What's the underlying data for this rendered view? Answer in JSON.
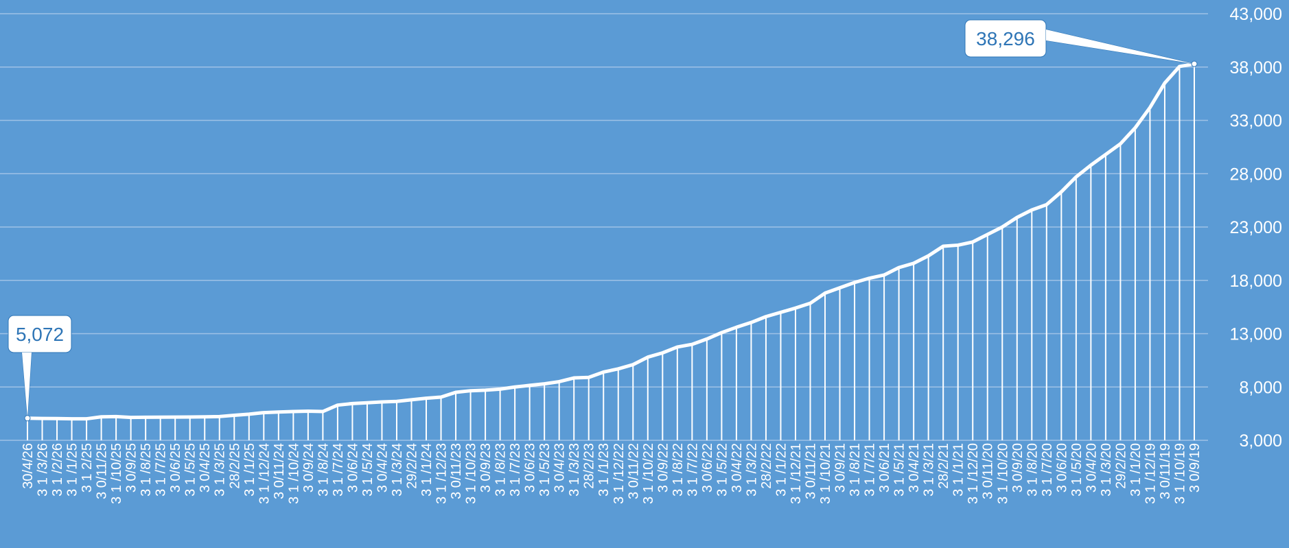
{
  "chart_data": {
    "type": "area",
    "ylim": [
      3000,
      43000
    ],
    "yticks": [
      3000,
      8000,
      13000,
      18000,
      23000,
      28000,
      33000,
      38000,
      43000
    ],
    "grid": true,
    "colors": {
      "background": "#5b9bd5",
      "line": "#ffffff",
      "gridline": "#9fc2e6",
      "callout_text": "#2e75b6"
    },
    "x": [
      "30/4/26",
      "3\n1\n/3/26",
      "3\n1\n/2/26",
      "3\n1\n/1/25",
      "3\n1\n2/25",
      "3\n0/11/25",
      "3\n1\n/10/25",
      "3\n0/9/25",
      "3\n1\n/8/25",
      "3\n1\n/7/25",
      "3\n0/6/25",
      "3\n1\n/5/25",
      "3\n0/4/25",
      "3\n1\n/3/25",
      "28/2/25",
      "3\n1\n/1/25",
      "3\n1\n/12/24",
      "3\n0/11/24",
      "3\n1\n/10/24",
      "3\n0/9/24",
      "3\n1\n/8/24",
      "3\n1\n/7/24",
      "3\n0/6/24",
      "3\n1\n/5/24",
      "3\n0/4/24",
      "3\n1\n/3/24",
      "29/2/24",
      "3\n1\n/1/24",
      "3\n1\n/12/23",
      "3\n0/11/23",
      "3\n1\n/10/23",
      "3\n0/9/23",
      "3\n1\n/8/23",
      "3\n1\n/7/23",
      "3\n0/6/23",
      "3\n1\n/5/23",
      "3\n0/4/23",
      "3\n1\n/3/23",
      "28/2/23",
      "3\n1\n/1/23",
      "3\n1\n/12/22",
      "3\n0/11/22",
      "3\n1\n/10/22",
      "3\n0/9/22",
      "3\n1\n/8/22",
      "3\n1\n/7/22",
      "3\n0/6/22",
      "3\n1\n/5/22",
      "3\n0/4/22",
      "3\n1\n/3/22",
      "28/2/22",
      "3\n1\n/1/22",
      "3\n1\n/12/21",
      "3\n0/11/21",
      "3\n1\n/10/21",
      "3\n0/9/21",
      "3\n1\n/8/21",
      "3\n1\n/7/21",
      "3\n0/6/21",
      "3\n1\n/5/21",
      "3\n0/4/21",
      "3\n1\n/3/21",
      "28/2/21",
      "3\n1\n/1/21",
      "3\n1\n/12/20",
      "3\n0/11/20",
      "3\n1\n/10/20",
      "3\n0/9/20",
      "3\n1\n/8/20",
      "3\n1\n/7/20",
      "3\n0/6/20",
      "3\n1\n/5/20",
      "3\n0/4/20",
      "3\n1\n/3/20",
      "29/2/20",
      "3\n1\n/1/20",
      "3\n1\n/12/19",
      "3\n0/11/19",
      "3\n1\n/10/19",
      "3\n0/9/19"
    ],
    "values": [
      5072,
      5050,
      5040,
      5020,
      5020,
      5200,
      5230,
      5150,
      5160,
      5170,
      5180,
      5190,
      5200,
      5230,
      5350,
      5450,
      5600,
      5650,
      5700,
      5730,
      5700,
      6300,
      6450,
      6520,
      6600,
      6650,
      6800,
      6950,
      7050,
      7500,
      7650,
      7700,
      7800,
      8000,
      8150,
      8300,
      8500,
      8850,
      8900,
      9400,
      9700,
      10100,
      10800,
      11200,
      11750,
      12000,
      12500,
      13100,
      13600,
      14050,
      14600,
      15000,
      15400,
      15850,
      16800,
      17300,
      17800,
      18200,
      18500,
      19200,
      19600,
      20300,
      21200,
      21300,
      21600,
      22300,
      23000,
      23900,
      24600,
      25100,
      26300,
      27700,
      28800,
      29800,
      30800,
      32300,
      34200,
      36500,
      38050,
      38296
    ],
    "annotations": [
      {
        "label": "5,072",
        "value": 5072,
        "point_index": 0
      },
      {
        "label": "38,296",
        "value": 38296,
        "point_index": 79
      }
    ],
    "ytick_labels": [
      "3,000",
      "8,000",
      "13,000",
      "18,000",
      "23,000",
      "28,000",
      "33,000",
      "38,000",
      "43,000"
    ]
  }
}
